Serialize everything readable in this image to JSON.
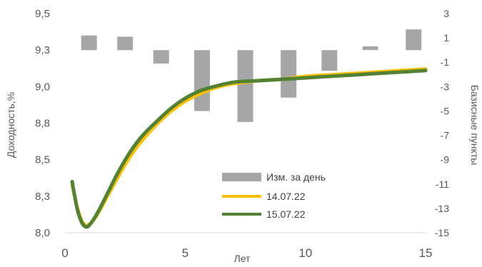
{
  "chart_data": {
    "type": "bar+line",
    "title": "",
    "xlabel": "Лет",
    "ylabel_left": "Доходность,%",
    "ylabel_right": "Базисные пункты",
    "xlim": [
      0,
      15
    ],
    "ylim_left": [
      8.0,
      9.5
    ],
    "ylim_right": [
      -15,
      3
    ],
    "x_ticks": [
      "0",
      "5",
      "10",
      "15"
    ],
    "y_left_ticks": [
      "8,0",
      "8,3",
      "8,5",
      "8,8",
      "9,0",
      "9,3",
      "9,5"
    ],
    "y_left_tick_values": [
      8.0,
      8.25,
      8.5,
      8.75,
      9.0,
      9.25,
      9.5
    ],
    "y_right_ticks": [
      "-15",
      "-13",
      "-11",
      "-9",
      "-7",
      "-5",
      "-3",
      "-1",
      "1",
      "3"
    ],
    "y_right_tick_values": [
      -15,
      -13,
      -11,
      -9,
      -7,
      -5,
      -3,
      -1,
      1,
      3
    ],
    "grid": false,
    "legend_position": "bottom-center",
    "bars": {
      "name": "Изм. за день",
      "color": "#a6a6a6",
      "axis": "right",
      "x": [
        1,
        2.5,
        4,
        5.7,
        7.5,
        9.3,
        11,
        12.7,
        14.5
      ],
      "values": [
        1.2,
        1.1,
        -1.1,
        -5.0,
        -5.9,
        -3.9,
        -1.7,
        0.3,
        1.7
      ]
    },
    "series": [
      {
        "name": "14.07.22",
        "color": "#ffc000",
        "axis": "left",
        "x": [
          0.3,
          0.5,
          0.7,
          0.9,
          1.1,
          1.4,
          1.8,
          2.2,
          2.7,
          3.2,
          3.8,
          4.4,
          5.0,
          5.6,
          6.2,
          7.0,
          8.0,
          9.0,
          10.0,
          11.0,
          12.0,
          13.0,
          14.0,
          15.0
        ],
        "values": [
          8.33,
          8.18,
          8.08,
          8.05,
          8.07,
          8.14,
          8.26,
          8.38,
          8.52,
          8.63,
          8.74,
          8.83,
          8.9,
          8.95,
          8.99,
          9.02,
          9.04,
          9.05,
          9.07,
          9.08,
          9.09,
          9.1,
          9.11,
          9.12
        ]
      },
      {
        "name": "15.07.22",
        "color": "#548235",
        "axis": "left",
        "x": [
          0.3,
          0.5,
          0.7,
          0.9,
          1.1,
          1.4,
          1.8,
          2.2,
          2.7,
          3.2,
          3.8,
          4.4,
          5.0,
          5.6,
          6.2,
          7.0,
          8.0,
          9.0,
          10.0,
          11.0,
          12.0,
          13.0,
          14.0,
          15.0
        ],
        "values": [
          8.35,
          8.17,
          8.07,
          8.04,
          8.07,
          8.15,
          8.28,
          8.41,
          8.55,
          8.66,
          8.76,
          8.85,
          8.92,
          8.97,
          9.0,
          9.03,
          9.04,
          9.05,
          9.06,
          9.07,
          9.08,
          9.09,
          9.1,
          9.11
        ]
      }
    ]
  }
}
